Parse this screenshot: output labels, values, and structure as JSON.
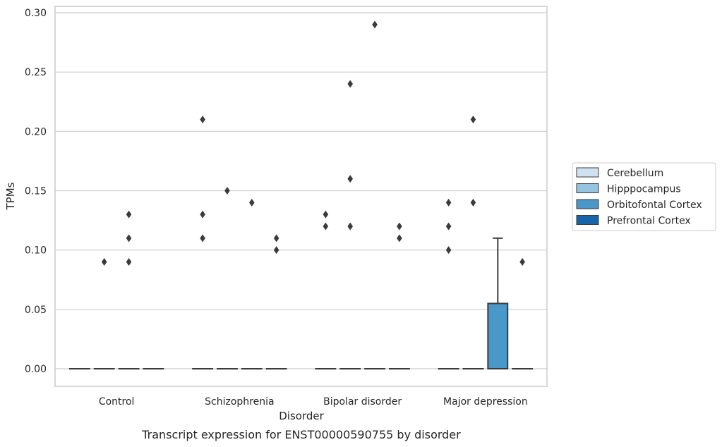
{
  "chart_data": {
    "type": "box",
    "caption": "Transcript expression for ENST00000590755 by disorder",
    "xlabel": "Disorder",
    "ylabel": "TPMs",
    "ylim": [
      -0.014,
      0.305
    ],
    "yticks": [
      0.0,
      0.05,
      0.1,
      0.15,
      0.2,
      0.25,
      0.3
    ],
    "ytick_labels": [
      "0.00",
      "0.05",
      "0.10",
      "0.15",
      "0.20",
      "0.25",
      "0.30"
    ],
    "categories": [
      "Control",
      "Schizophrenia",
      "Bipolar disorder",
      "Major depression"
    ],
    "grid": "horizontal",
    "legend_position": "right",
    "series": [
      {
        "name": "Cerebellum",
        "color": "#d0e1f2",
        "boxes": [
          {
            "q1": 0,
            "median": 0,
            "q3": 0,
            "whisker_low": 0,
            "whisker_high": 0,
            "outliers": []
          },
          {
            "q1": 0,
            "median": 0,
            "q3": 0,
            "whisker_low": 0,
            "whisker_high": 0,
            "outliers": [
              0.21,
              0.13,
              0.11
            ]
          },
          {
            "q1": 0,
            "median": 0,
            "q3": 0,
            "whisker_low": 0,
            "whisker_high": 0,
            "outliers": [
              0.13,
              0.12
            ]
          },
          {
            "q1": 0,
            "median": 0,
            "q3": 0,
            "whisker_low": 0,
            "whisker_high": 0,
            "outliers": [
              0.14,
              0.12,
              0.1
            ]
          }
        ]
      },
      {
        "name": "Hipppocampus",
        "color": "#94c4df",
        "boxes": [
          {
            "q1": 0,
            "median": 0,
            "q3": 0,
            "whisker_low": 0,
            "whisker_high": 0,
            "outliers": [
              0.09
            ]
          },
          {
            "q1": 0,
            "median": 0,
            "q3": 0,
            "whisker_low": 0,
            "whisker_high": 0,
            "outliers": [
              0.15
            ]
          },
          {
            "q1": 0,
            "median": 0,
            "q3": 0,
            "whisker_low": 0,
            "whisker_high": 0,
            "outliers": [
              0.24,
              0.16,
              0.12
            ]
          },
          {
            "q1": 0,
            "median": 0,
            "q3": 0,
            "whisker_low": 0,
            "whisker_high": 0,
            "outliers": [
              0.21,
              0.14
            ]
          }
        ]
      },
      {
        "name": "Orbitofontal Cortex",
        "color": "#4a98c9",
        "boxes": [
          {
            "q1": 0,
            "median": 0,
            "q3": 0,
            "whisker_low": 0,
            "whisker_high": 0,
            "outliers": [
              0.13,
              0.11,
              0.09
            ]
          },
          {
            "q1": 0,
            "median": 0,
            "q3": 0,
            "whisker_low": 0,
            "whisker_high": 0,
            "outliers": [
              0.14
            ]
          },
          {
            "q1": 0,
            "median": 0,
            "q3": 0,
            "whisker_low": 0,
            "whisker_high": 0,
            "outliers": [
              0.29
            ]
          },
          {
            "q1": 0,
            "median": 0,
            "q3": 0.055,
            "whisker_low": 0,
            "whisker_high": 0.11,
            "outliers": []
          }
        ]
      },
      {
        "name": "Prefrontal Cortex",
        "color": "#1764ab",
        "boxes": [
          {
            "q1": 0,
            "median": 0,
            "q3": 0,
            "whisker_low": 0,
            "whisker_high": 0,
            "outliers": []
          },
          {
            "q1": 0,
            "median": 0,
            "q3": 0,
            "whisker_low": 0,
            "whisker_high": 0,
            "outliers": [
              0.11,
              0.1
            ]
          },
          {
            "q1": 0,
            "median": 0,
            "q3": 0,
            "whisker_low": 0,
            "whisker_high": 0,
            "outliers": [
              0.12,
              0.11
            ]
          },
          {
            "q1": 0,
            "median": 0,
            "q3": 0,
            "whisker_low": 0,
            "whisker_high": 0,
            "outliers": [
              0.09
            ]
          }
        ]
      }
    ]
  }
}
